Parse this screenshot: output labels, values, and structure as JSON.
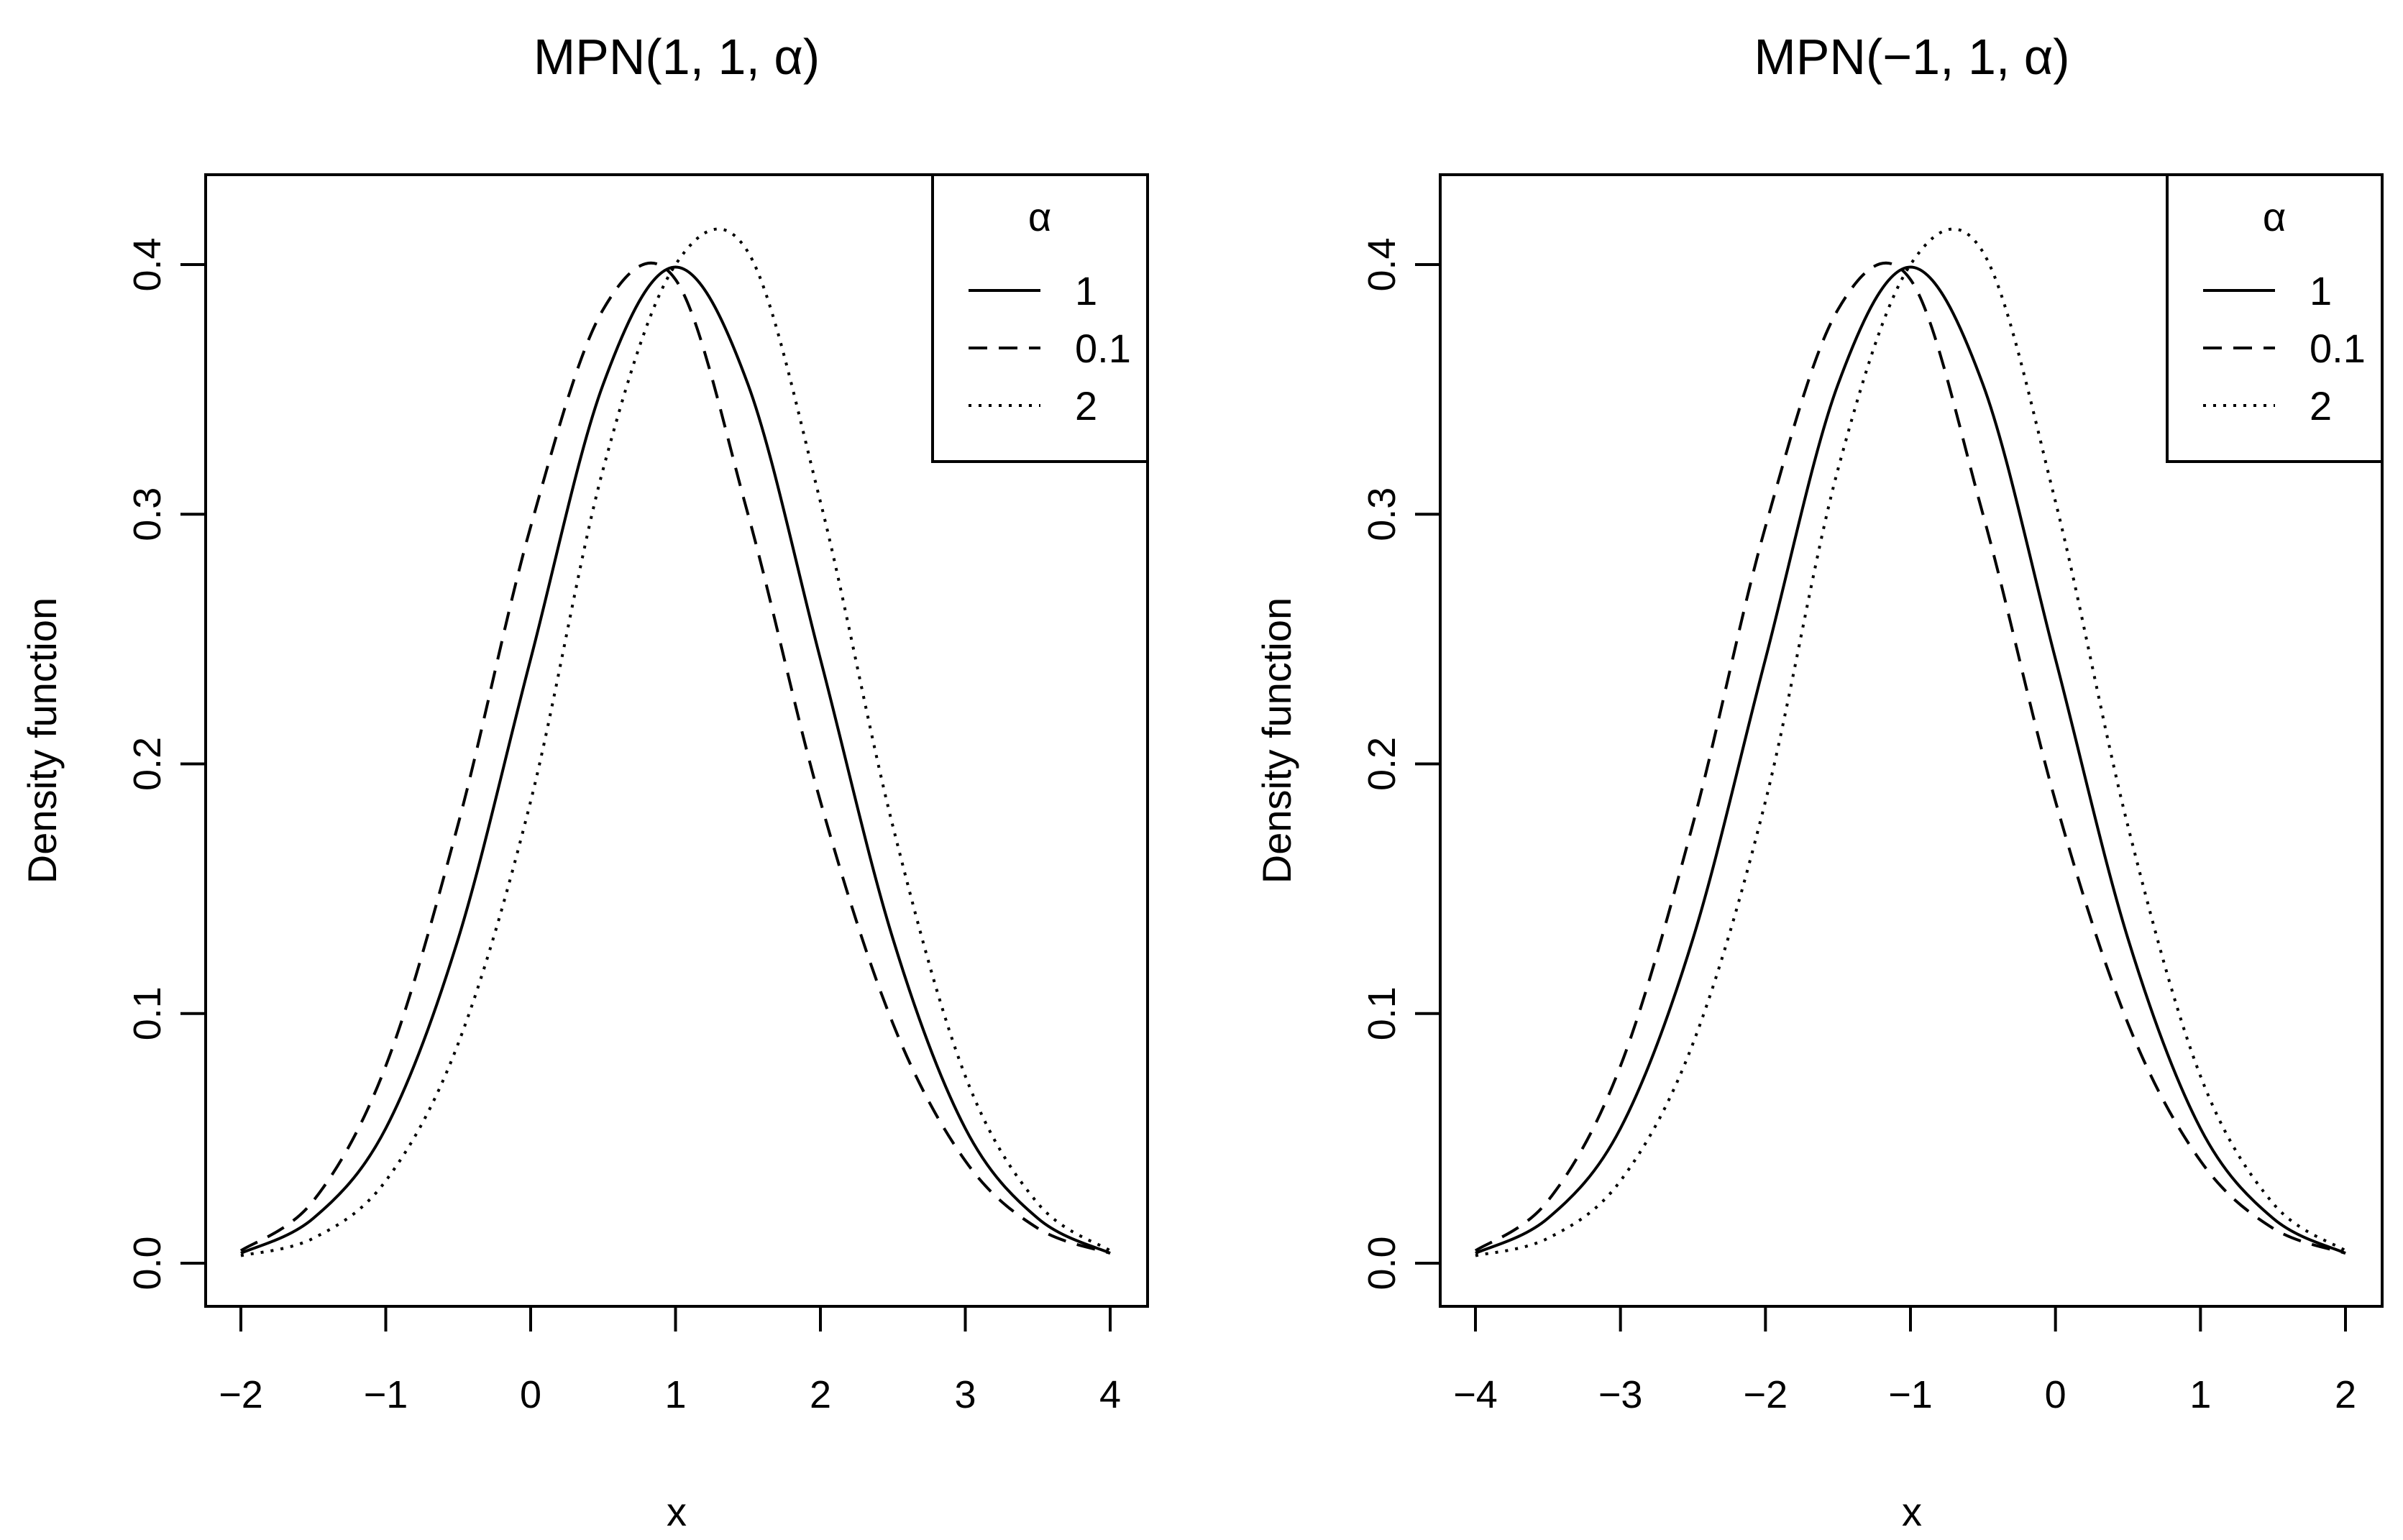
{
  "chart_data": [
    {
      "type": "line",
      "title": "MPN(1, 1, α)",
      "xlabel": "x",
      "ylabel": "Density function",
      "xlim": [
        -2,
        4
      ],
      "ylim": [
        0,
        0.4
      ],
      "xticks": [
        -2,
        -1,
        0,
        1,
        2,
        3,
        4
      ],
      "xtick_labels": [
        "−2",
        "−1",
        "0",
        "1",
        "2",
        "3",
        "4"
      ],
      "yticks": [
        0.0,
        0.1,
        0.2,
        0.3,
        0.4
      ],
      "ytick_labels": [
        "0.0",
        "0.1",
        "0.2",
        "0.3",
        "0.4"
      ],
      "grid": false,
      "legend": {
        "title": "α",
        "placement": "top-right"
      },
      "x": [
        -2.0,
        -1.5,
        -1.0,
        -0.5,
        0.0,
        0.5,
        1.0,
        1.5,
        2.0,
        2.5,
        3.0,
        3.5,
        4.0
      ],
      "series": [
        {
          "name": "1",
          "style": "solid",
          "values": [
            0.004,
            0.018,
            0.054,
            0.13,
            0.242,
            0.352,
            0.399,
            0.352,
            0.242,
            0.13,
            0.054,
            0.018,
            0.004
          ]
        },
        {
          "name": "0.1",
          "style": "dashed",
          "values": [
            0.005,
            0.025,
            0.079,
            0.176,
            0.295,
            0.382,
            0.394,
            0.3,
            0.185,
            0.096,
            0.041,
            0.014,
            0.004
          ]
        },
        {
          "name": "2",
          "style": "dotted",
          "values": [
            0.003,
            0.01,
            0.033,
            0.088,
            0.185,
            0.318,
            0.4,
            0.405,
            0.305,
            0.175,
            0.075,
            0.024,
            0.005
          ]
        }
      ]
    },
    {
      "type": "line",
      "title": "MPN(−1, 1, α)",
      "xlabel": "x",
      "ylabel": "Density function",
      "xlim": [
        -4,
        2
      ],
      "ylim": [
        0,
        0.4
      ],
      "xticks": [
        -4,
        -3,
        -2,
        -1,
        0,
        1,
        2
      ],
      "xtick_labels": [
        "−4",
        "−3",
        "−2",
        "−1",
        "0",
        "1",
        "2"
      ],
      "yticks": [
        0.0,
        0.1,
        0.2,
        0.3,
        0.4
      ],
      "ytick_labels": [
        "0.0",
        "0.1",
        "0.2",
        "0.3",
        "0.4"
      ],
      "grid": false,
      "legend": {
        "title": "α",
        "placement": "top-right"
      },
      "x": [
        -4.0,
        -3.5,
        -3.0,
        -2.5,
        -2.0,
        -1.5,
        -1.0,
        -0.5,
        0.0,
        0.5,
        1.0,
        1.5,
        2.0
      ],
      "series": [
        {
          "name": "1",
          "style": "solid",
          "values": [
            0.004,
            0.018,
            0.054,
            0.13,
            0.242,
            0.352,
            0.399,
            0.352,
            0.242,
            0.13,
            0.054,
            0.018,
            0.004
          ]
        },
        {
          "name": "0.1",
          "style": "dashed",
          "values": [
            0.005,
            0.025,
            0.079,
            0.176,
            0.295,
            0.382,
            0.394,
            0.3,
            0.185,
            0.096,
            0.041,
            0.014,
            0.004
          ]
        },
        {
          "name": "2",
          "style": "dotted",
          "values": [
            0.003,
            0.01,
            0.033,
            0.088,
            0.185,
            0.318,
            0.4,
            0.405,
            0.305,
            0.175,
            0.075,
            0.024,
            0.005
          ]
        }
      ]
    }
  ]
}
